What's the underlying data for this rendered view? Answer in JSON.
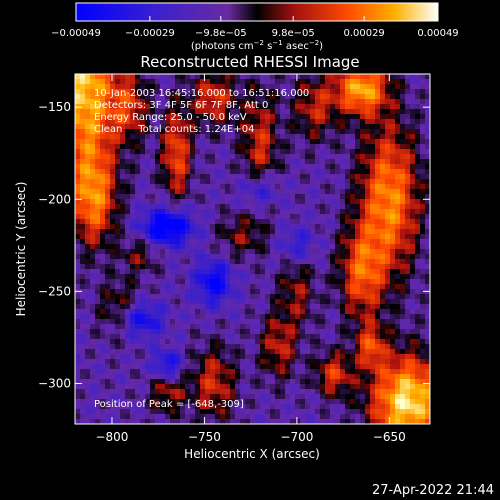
{
  "chart_data": {
    "type": "heatmap",
    "title": "Reconstructed RHESSI Image",
    "xlabel": "Heliocentric X (arcsec)",
    "ylabel": "Heliocentric Y (arcsec)",
    "xlim": [
      -820,
      -628
    ],
    "ylim": [
      -322,
      -132
    ],
    "xticks": [
      {
        "value": -800,
        "label": "−800"
      },
      {
        "value": -750,
        "label": "−750"
      },
      {
        "value": -700,
        "label": "−700"
      },
      {
        "value": -650,
        "label": "−650"
      }
    ],
    "yticks": [
      {
        "value": -150,
        "label": "−150"
      },
      {
        "value": -200,
        "label": "−200"
      },
      {
        "value": -250,
        "label": "−250"
      },
      {
        "value": -300,
        "label": "−300"
      }
    ],
    "colorbar": {
      "range": [
        -0.00049,
        0.00049
      ],
      "ticks": [
        {
          "value": -0.00049,
          "label": "−0.00049"
        },
        {
          "value": -0.00029,
          "label": "−0.00029"
        },
        {
          "value": -9.8e-05,
          "label": "−9.8e−05"
        },
        {
          "value": 9.8e-05,
          "label": "9.8e−05"
        },
        {
          "value": 0.00029,
          "label": "0.00029"
        },
        {
          "value": 0.00049,
          "label": "0.00049"
        }
      ],
      "unit_prefix": "(photons cm",
      "unit_sup1": "−2",
      "unit_mid": " s",
      "unit_sup2": "−1",
      "unit_mid2": " asec",
      "unit_sup3": "−2",
      "unit_suffix": ")"
    },
    "annotations": {
      "time_range": "10-Jan-2003 16:45:16.000 to 16:51:16.000",
      "detectors": "Detectors: 3F 4F 5F 6F 7F 8F, Att 0",
      "energy": "Energy Range: 25.0 - 50.0 keV",
      "method": "Clean     Total counts: 1.24E+04",
      "peak": "Position of Peak = [-648,-309]"
    },
    "colors": [
      "#0000ff",
      "#5a1fb0",
      "#000000",
      "#b01010",
      "#ff4a00",
      "#ffb000",
      "#ffffc8"
    ]
  },
  "timestamp": "27-Apr-2022 21:44"
}
